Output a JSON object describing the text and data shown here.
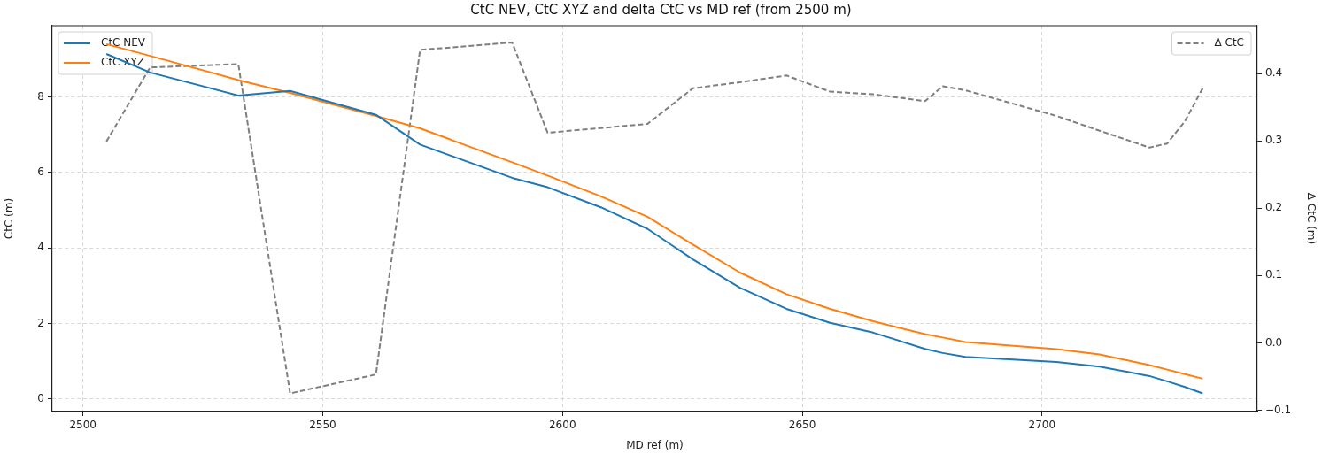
{
  "chart_data": {
    "type": "line",
    "title": "CtC NEV, CtC XYZ and delta CtC vs MD ref (from 2500 m)",
    "xlabel": "MD ref (m)",
    "ylabel": "CtC (m)",
    "y2label": "Δ CtC (m)",
    "x": [
      2504.9,
      2514,
      2532.4,
      2543.2,
      2561.1,
      2570.3,
      2589.5,
      2596.9,
      2608,
      2617.7,
      2627.2,
      2637,
      2646.7,
      2655.8,
      2664.8,
      2675.6,
      2679.3,
      2684,
      2703,
      2712,
      2722.4,
      2726.1,
      2729.8,
      2733.5
    ],
    "series": [
      {
        "name": "CtC NEV",
        "color": "#1f77b4",
        "values": [
          9.14,
          8.65,
          8.04,
          8.16,
          7.53,
          6.74,
          5.86,
          5.61,
          5.08,
          4.51,
          3.7,
          2.95,
          2.39,
          2.02,
          1.76,
          1.33,
          1.22,
          1.12,
          0.98,
          0.86,
          0.61,
          0.47,
          0.32,
          0.15
        ]
      },
      {
        "name": "CtC XYZ",
        "color": "#ff7f0e",
        "values": [
          9.4,
          9.09,
          8.45,
          8.11,
          7.5,
          7.17,
          6.27,
          5.92,
          5.37,
          4.83,
          4.09,
          3.35,
          2.78,
          2.39,
          2.06,
          1.72,
          1.63,
          1.51,
          1.32,
          1.18,
          0.9,
          0.78,
          0.66,
          0.54
        ]
      },
      {
        "name": "Δ CtC",
        "color": "#7f7f7f",
        "axis": "y2",
        "line_style": "dashed",
        "values": [
          0.299,
          0.409,
          0.414,
          -0.075,
          -0.047,
          0.435,
          0.446,
          0.312,
          0.319,
          0.325,
          0.378,
          0.387,
          0.397,
          0.373,
          0.369,
          0.359,
          0.381,
          0.375,
          0.337,
          0.315,
          0.29,
          0.296,
          0.329,
          0.378
        ]
      }
    ],
    "xlim": [
      2493.6,
      2744.9
    ],
    "xticks": [
      2500,
      2550,
      2600,
      2650,
      2700
    ],
    "ylim": [
      -0.33,
      9.89
    ],
    "yticks": [
      0,
      2,
      4,
      6,
      8
    ],
    "y2lim": [
      -0.102,
      0.471
    ],
    "y2ticks": [
      {
        "value": -0.1,
        "label": "−0.1"
      },
      {
        "value": 0,
        "label": "0.0"
      },
      0.1,
      0.2,
      0.3,
      0.4
    ],
    "grid": true,
    "legend": "top left",
    "marker": "none"
  }
}
